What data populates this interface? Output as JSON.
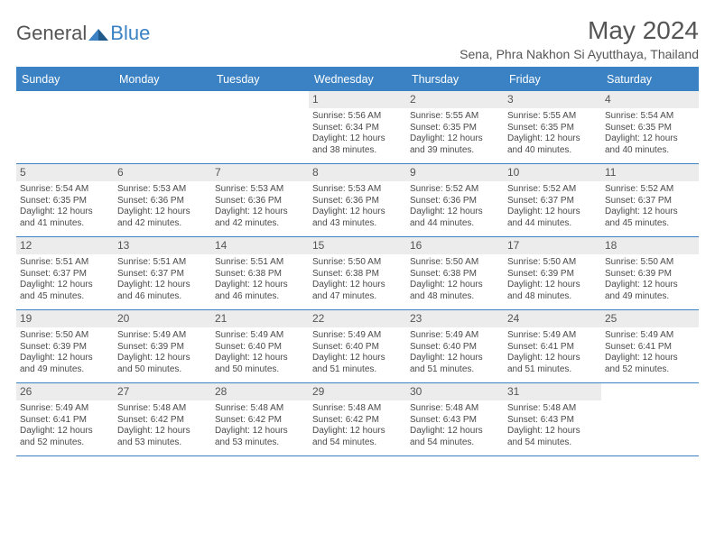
{
  "brand": {
    "part1": "General",
    "part2": "Blue"
  },
  "title": "May 2024",
  "location": "Sena, Phra Nakhon Si Ayutthaya, Thailand",
  "colors": {
    "accent": "#3b82c4",
    "header_text": "#ffffff",
    "daynum_bg": "#ececec",
    "text": "#4a4a4a",
    "border": "#3b82c4"
  },
  "day_names": [
    "Sunday",
    "Monday",
    "Tuesday",
    "Wednesday",
    "Thursday",
    "Friday",
    "Saturday"
  ],
  "weeks": [
    [
      {
        "day": "",
        "empty": true
      },
      {
        "day": "",
        "empty": true
      },
      {
        "day": "",
        "empty": true
      },
      {
        "day": "1",
        "sunrise": "5:56 AM",
        "sunset": "6:34 PM",
        "daylight": "12 hours and 38 minutes."
      },
      {
        "day": "2",
        "sunrise": "5:55 AM",
        "sunset": "6:35 PM",
        "daylight": "12 hours and 39 minutes."
      },
      {
        "day": "3",
        "sunrise": "5:55 AM",
        "sunset": "6:35 PM",
        "daylight": "12 hours and 40 minutes."
      },
      {
        "day": "4",
        "sunrise": "5:54 AM",
        "sunset": "6:35 PM",
        "daylight": "12 hours and 40 minutes."
      }
    ],
    [
      {
        "day": "5",
        "sunrise": "5:54 AM",
        "sunset": "6:35 PM",
        "daylight": "12 hours and 41 minutes."
      },
      {
        "day": "6",
        "sunrise": "5:53 AM",
        "sunset": "6:36 PM",
        "daylight": "12 hours and 42 minutes."
      },
      {
        "day": "7",
        "sunrise": "5:53 AM",
        "sunset": "6:36 PM",
        "daylight": "12 hours and 42 minutes."
      },
      {
        "day": "8",
        "sunrise": "5:53 AM",
        "sunset": "6:36 PM",
        "daylight": "12 hours and 43 minutes."
      },
      {
        "day": "9",
        "sunrise": "5:52 AM",
        "sunset": "6:36 PM",
        "daylight": "12 hours and 44 minutes."
      },
      {
        "day": "10",
        "sunrise": "5:52 AM",
        "sunset": "6:37 PM",
        "daylight": "12 hours and 44 minutes."
      },
      {
        "day": "11",
        "sunrise": "5:52 AM",
        "sunset": "6:37 PM",
        "daylight": "12 hours and 45 minutes."
      }
    ],
    [
      {
        "day": "12",
        "sunrise": "5:51 AM",
        "sunset": "6:37 PM",
        "daylight": "12 hours and 45 minutes."
      },
      {
        "day": "13",
        "sunrise": "5:51 AM",
        "sunset": "6:37 PM",
        "daylight": "12 hours and 46 minutes."
      },
      {
        "day": "14",
        "sunrise": "5:51 AM",
        "sunset": "6:38 PM",
        "daylight": "12 hours and 46 minutes."
      },
      {
        "day": "15",
        "sunrise": "5:50 AM",
        "sunset": "6:38 PM",
        "daylight": "12 hours and 47 minutes."
      },
      {
        "day": "16",
        "sunrise": "5:50 AM",
        "sunset": "6:38 PM",
        "daylight": "12 hours and 48 minutes."
      },
      {
        "day": "17",
        "sunrise": "5:50 AM",
        "sunset": "6:39 PM",
        "daylight": "12 hours and 48 minutes."
      },
      {
        "day": "18",
        "sunrise": "5:50 AM",
        "sunset": "6:39 PM",
        "daylight": "12 hours and 49 minutes."
      }
    ],
    [
      {
        "day": "19",
        "sunrise": "5:50 AM",
        "sunset": "6:39 PM",
        "daylight": "12 hours and 49 minutes."
      },
      {
        "day": "20",
        "sunrise": "5:49 AM",
        "sunset": "6:39 PM",
        "daylight": "12 hours and 50 minutes."
      },
      {
        "day": "21",
        "sunrise": "5:49 AM",
        "sunset": "6:40 PM",
        "daylight": "12 hours and 50 minutes."
      },
      {
        "day": "22",
        "sunrise": "5:49 AM",
        "sunset": "6:40 PM",
        "daylight": "12 hours and 51 minutes."
      },
      {
        "day": "23",
        "sunrise": "5:49 AM",
        "sunset": "6:40 PM",
        "daylight": "12 hours and 51 minutes."
      },
      {
        "day": "24",
        "sunrise": "5:49 AM",
        "sunset": "6:41 PM",
        "daylight": "12 hours and 51 minutes."
      },
      {
        "day": "25",
        "sunrise": "5:49 AM",
        "sunset": "6:41 PM",
        "daylight": "12 hours and 52 minutes."
      }
    ],
    [
      {
        "day": "26",
        "sunrise": "5:49 AM",
        "sunset": "6:41 PM",
        "daylight": "12 hours and 52 minutes."
      },
      {
        "day": "27",
        "sunrise": "5:48 AM",
        "sunset": "6:42 PM",
        "daylight": "12 hours and 53 minutes."
      },
      {
        "day": "28",
        "sunrise": "5:48 AM",
        "sunset": "6:42 PM",
        "daylight": "12 hours and 53 minutes."
      },
      {
        "day": "29",
        "sunrise": "5:48 AM",
        "sunset": "6:42 PM",
        "daylight": "12 hours and 54 minutes."
      },
      {
        "day": "30",
        "sunrise": "5:48 AM",
        "sunset": "6:43 PM",
        "daylight": "12 hours and 54 minutes."
      },
      {
        "day": "31",
        "sunrise": "5:48 AM",
        "sunset": "6:43 PM",
        "daylight": "12 hours and 54 minutes."
      },
      {
        "day": "",
        "empty": true
      }
    ]
  ],
  "labels": {
    "sunrise_prefix": "Sunrise: ",
    "sunset_prefix": "Sunset: ",
    "daylight_prefix": "Daylight: "
  }
}
